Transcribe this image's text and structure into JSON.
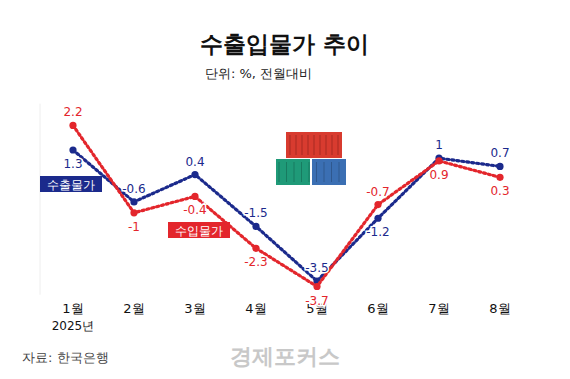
{
  "chart_data": {
    "type": "line",
    "title": "수출입물가 추이",
    "subtitle": "단위: %, 전월대비",
    "categories": [
      "1월",
      "2월",
      "3월",
      "4월",
      "5월",
      "6월",
      "7월",
      "8월"
    ],
    "annotations": [
      "2025년"
    ],
    "source": "자료: 한국은행",
    "logo": "경제포커스",
    "series": [
      {
        "name": "수출물가",
        "color": "#1b2a8c",
        "marker": "circle",
        "line_style": "dotted",
        "values": [
          1.3,
          -0.6,
          0.4,
          -1.5,
          -3.5,
          -1.2,
          1.0,
          0.7
        ]
      },
      {
        "name": "수입물가",
        "color": "#e3262c",
        "marker": "circle",
        "line_style": "dotted",
        "values": [
          2.2,
          -1.0,
          -0.4,
          -2.3,
          -3.7,
          -0.7,
          0.9,
          0.3
        ]
      }
    ],
    "ylim": [
      -4,
      3
    ],
    "grid": false,
    "data_labels": true,
    "tick_labels": "x"
  }
}
